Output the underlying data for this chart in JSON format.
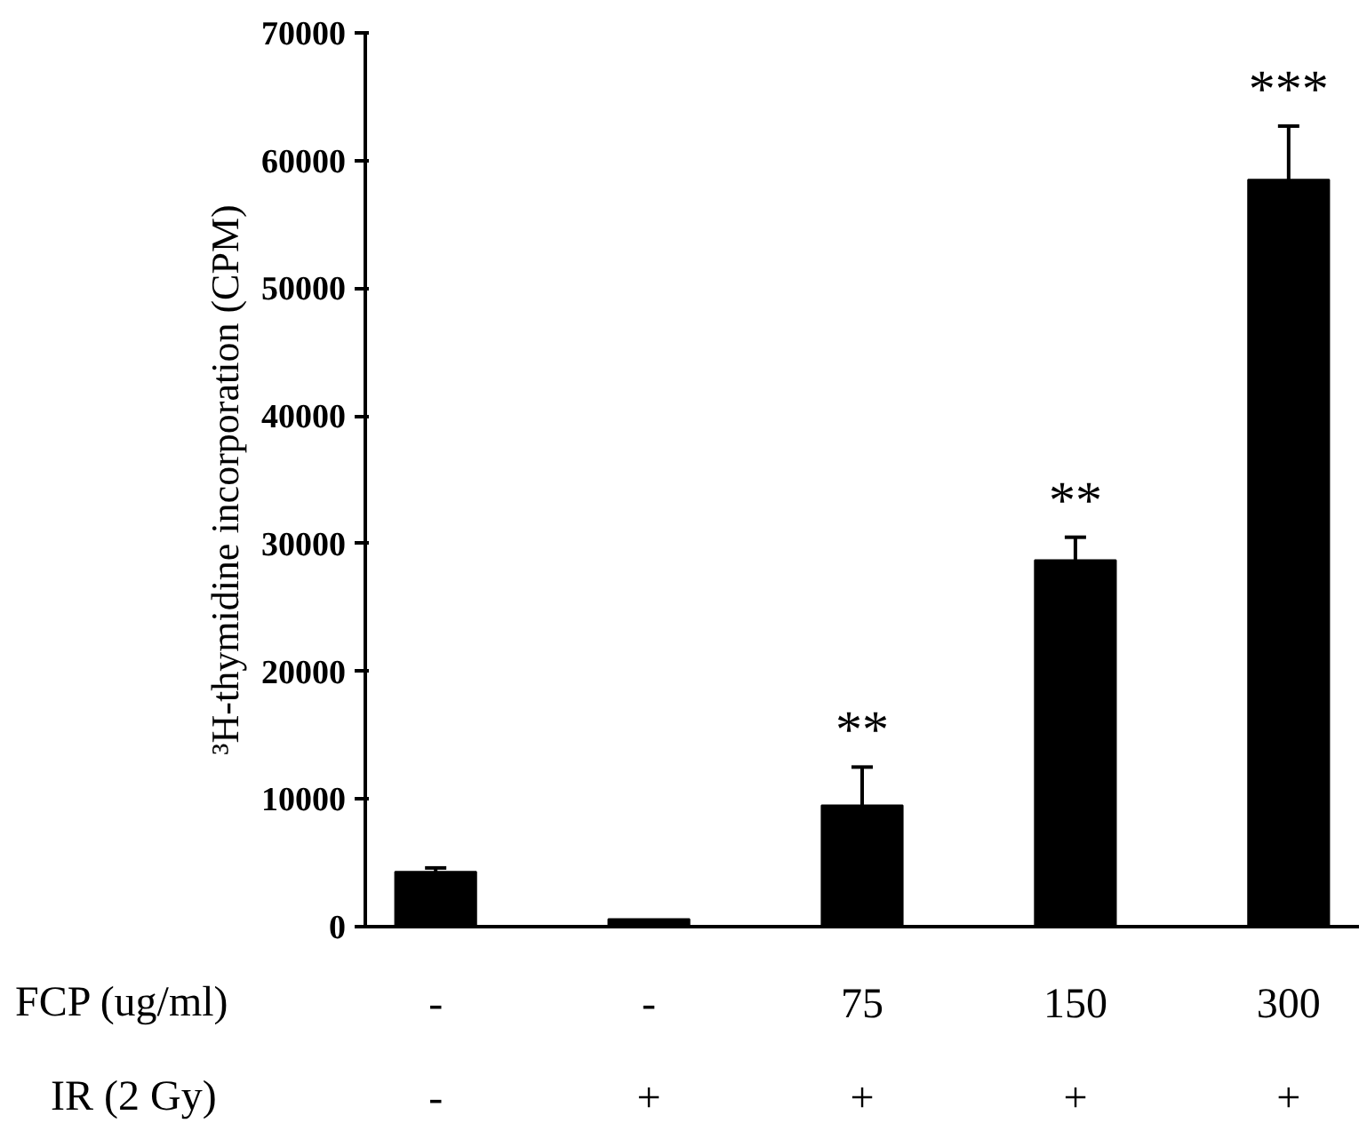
{
  "chart_data": {
    "type": "bar",
    "ylabel": "³H-thymidine incorporation (CPM)",
    "xlabel": "FCP  (ug/ml)",
    "categories": [
      "-",
      "-",
      "75",
      "150",
      "300"
    ],
    "values": [
      4300,
      600,
      9500,
      28700,
      58500
    ],
    "errors": [
      300,
      null,
      3000,
      1800,
      4200
    ],
    "color": "#000000",
    "ylim": [
      0,
      70000
    ],
    "yticks": [
      0,
      10000,
      20000,
      30000,
      40000,
      50000,
      60000,
      70000
    ],
    "grid": false,
    "annotations": [
      {
        "text": "**",
        "x": "75",
        "y": 12500
      },
      {
        "text": "**",
        "x": "150",
        "y": 30500
      },
      {
        "text": "***",
        "x": "300",
        "y": 62700
      },
      "IR (2 Gy)",
      "-",
      "+",
      "+",
      "+",
      "+"
    ]
  }
}
